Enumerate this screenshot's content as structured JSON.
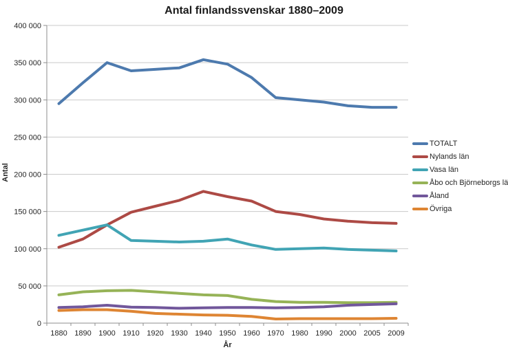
{
  "chart_data": {
    "type": "line",
    "title": "Antal finlandssvenskar 1880–2009",
    "xlabel": "År",
    "ylabel": "Antal",
    "categories": [
      "1880",
      "1890",
      "1900",
      "1910",
      "1920",
      "1930",
      "1940",
      "1950",
      "1960",
      "1970",
      "1980",
      "1990",
      "2000",
      "2005",
      "2009"
    ],
    "series": [
      {
        "name": "TOTALT",
        "color": "#4D7AAE",
        "values": [
          295000,
          323000,
          350000,
          339000,
          341000,
          343000,
          354000,
          348000,
          330000,
          303000,
          300000,
          297000,
          292000,
          290000,
          290000
        ]
      },
      {
        "name": "Nylands län",
        "color": "#AD4A45",
        "values": [
          102000,
          113000,
          132000,
          149000,
          157000,
          165000,
          177000,
          170000,
          164000,
          150000,
          146000,
          140000,
          137000,
          135000,
          134000
        ]
      },
      {
        "name": "Vasa län",
        "color": "#41A4B4",
        "values": [
          118000,
          125000,
          132000,
          111000,
          110000,
          109000,
          110000,
          113000,
          105000,
          99000,
          100000,
          101000,
          99000,
          98000,
          97000
        ]
      },
      {
        "name": "Åbo och Björneborgs län",
        "color": "#96B357",
        "values": [
          38000,
          42000,
          43500,
          44000,
          42000,
          40000,
          38000,
          37000,
          32000,
          29000,
          28000,
          28000,
          27500,
          27500,
          28000
        ]
      },
      {
        "name": "Åland",
        "color": "#71579B",
        "values": [
          21000,
          22000,
          24000,
          21500,
          21000,
          20000,
          20500,
          21000,
          21000,
          20500,
          21000,
          22000,
          24000,
          25000,
          26000
        ]
      },
      {
        "name": "Övriga",
        "color": "#DE8533",
        "values": [
          17000,
          18000,
          18000,
          16000,
          13000,
          12000,
          11000,
          10500,
          9000,
          5500,
          6000,
          6000,
          6000,
          6000,
          6500
        ]
      }
    ],
    "ylim": [
      0,
      400000
    ],
    "y_tick_step": 50000,
    "y_tick_labels": [
      "0",
      "50 000",
      "100 000",
      "150 000",
      "200 000",
      "250 000",
      "300 000",
      "350 000",
      "400 000"
    ],
    "grid": "horizontal",
    "legend_position": "right"
  },
  "colors": {
    "axis": "#8C8C8C",
    "gridline": "#C9C9C9",
    "tick_text": "#262626",
    "background": "#FFFFFF"
  }
}
